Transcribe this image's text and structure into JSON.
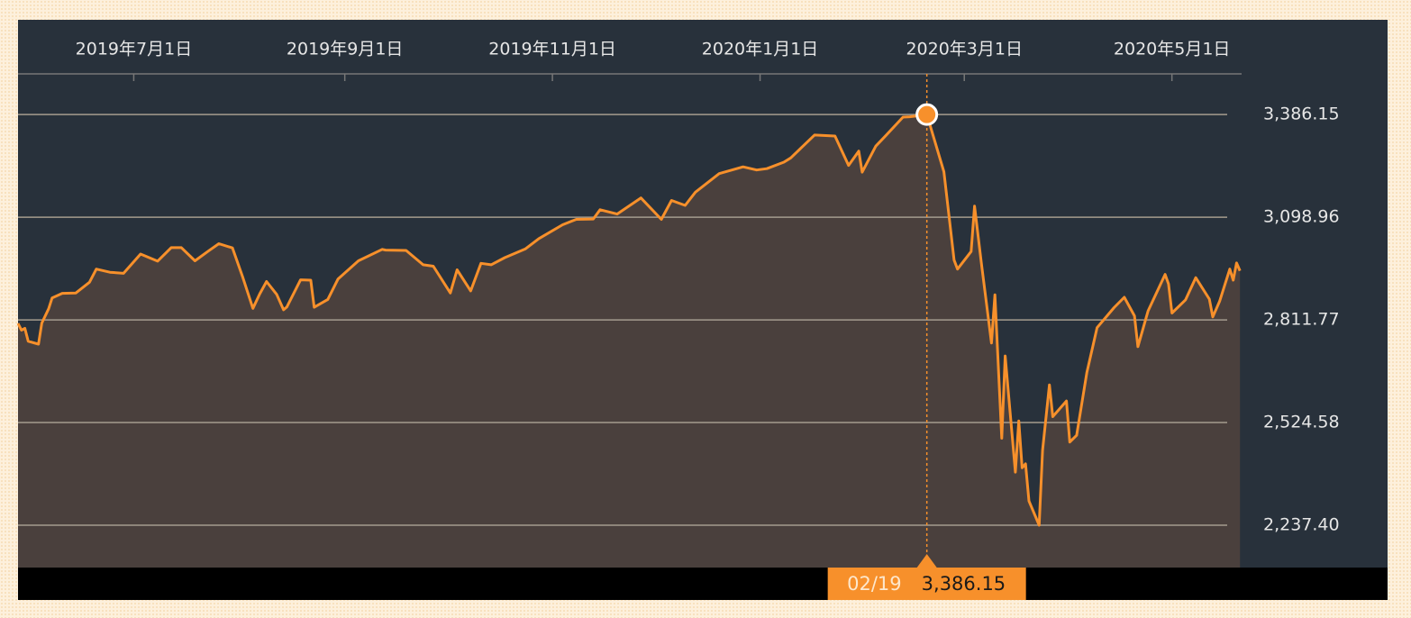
{
  "chart_data": {
    "type": "line",
    "x": [
      "2019-05-28",
      "2019-05-29",
      "2019-05-30",
      "2019-05-31",
      "2019-06-03",
      "2019-06-04",
      "2019-06-06",
      "2019-06-07",
      "2019-06-10",
      "2019-06-14",
      "2019-06-18",
      "2019-06-20",
      "2019-06-24",
      "2019-06-28",
      "2019-07-03",
      "2019-07-08",
      "2019-07-12",
      "2019-07-15",
      "2019-07-19",
      "2019-07-23",
      "2019-07-26",
      "2019-07-30",
      "2019-08-02",
      "2019-08-05",
      "2019-08-07",
      "2019-08-09",
      "2019-08-12",
      "2019-08-14",
      "2019-08-15",
      "2019-08-19",
      "2019-08-22",
      "2019-08-23",
      "2019-08-27",
      "2019-08-30",
      "2019-09-05",
      "2019-09-12",
      "2019-09-13",
      "2019-09-19",
      "2019-09-24",
      "2019-09-27",
      "2019-10-02",
      "2019-10-04",
      "2019-10-08",
      "2019-10-11",
      "2019-10-14",
      "2019-10-18",
      "2019-10-24",
      "2019-10-28",
      "2019-11-04",
      "2019-11-08",
      "2019-11-13",
      "2019-11-15",
      "2019-11-20",
      "2019-11-27",
      "2019-12-03",
      "2019-12-06",
      "2019-12-10",
      "2019-12-13",
      "2019-12-20",
      "2019-12-27",
      "2019-12-31",
      "2020-01-03",
      "2020-01-08",
      "2020-01-10",
      "2020-01-17",
      "2020-01-23",
      "2020-01-27",
      "2020-01-30",
      "2020-01-31",
      "2020-02-04",
      "2020-02-07",
      "2020-02-12",
      "2020-02-14",
      "2020-02-19",
      "2020-02-24",
      "2020-02-27",
      "2020-02-28",
      "2020-03-03",
      "2020-03-04",
      "2020-03-06",
      "2020-03-09",
      "2020-03-10",
      "2020-03-12",
      "2020-03-13",
      "2020-03-16",
      "2020-03-17",
      "2020-03-18",
      "2020-03-19",
      "2020-03-20",
      "2020-03-23",
      "2020-03-24",
      "2020-03-26",
      "2020-03-27",
      "2020-03-31",
      "2020-04-01",
      "2020-04-03",
      "2020-04-06",
      "2020-04-09",
      "2020-04-14",
      "2020-04-17",
      "2020-04-20",
      "2020-04-21",
      "2020-04-24",
      "2020-04-29",
      "2020-04-30",
      "2020-05-01",
      "2020-05-05",
      "2020-05-08",
      "2020-05-12",
      "2020-05-13",
      "2020-05-15",
      "2020-05-18",
      "2020-05-19",
      "2020-05-20",
      "2020-05-21"
    ],
    "series": [
      {
        "color": "#f7902b",
        "values": [
          2802,
          2783,
          2788,
          2752,
          2744,
          2803,
          2843,
          2873,
          2886,
          2887,
          2917,
          2954,
          2945,
          2942,
          2996,
          2976,
          3014,
          3014,
          2977,
          3005,
          3025,
          3013,
          2932,
          2844,
          2884,
          2919,
          2883,
          2840,
          2848,
          2924,
          2923,
          2847,
          2869,
          2926,
          2977,
          3009,
          3007,
          3006,
          2966,
          2962,
          2887,
          2952,
          2893,
          2970,
          2966,
          2986,
          3010,
          3039,
          3078,
          3093,
          3094,
          3120,
          3108,
          3153,
          3093,
          3146,
          3132,
          3169,
          3221,
          3240,
          3231,
          3235,
          3253,
          3265,
          3329,
          3326,
          3244,
          3284,
          3225,
          3298,
          3328,
          3379,
          3380,
          3386.15,
          3226,
          2979,
          2954,
          3003,
          3130,
          2972,
          2747,
          2882,
          2481,
          2711,
          2386,
          2529,
          2398,
          2409,
          2305,
          2237.4,
          2447,
          2630,
          2541,
          2585,
          2470,
          2489,
          2664,
          2790,
          2846,
          2875,
          2823,
          2737,
          2837,
          2939,
          2912,
          2831,
          2868,
          2930,
          2870,
          2820,
          2864,
          2954,
          2923,
          2971,
          2949
        ]
      }
    ],
    "xlim": [
      "2019-05-28",
      "2020-05-22"
    ],
    "xticks": [
      {
        "value": "2019-07-01",
        "label": "2019年7月1日"
      },
      {
        "value": "2019-09-01",
        "label": "2019年9月1日"
      },
      {
        "value": "2019-11-01",
        "label": "2019年11月1日"
      },
      {
        "value": "2020-01-01",
        "label": "2020年1月1日"
      },
      {
        "value": "2020-03-01",
        "label": "2020年3月1日"
      },
      {
        "value": "2020-05-01",
        "label": "2020年5月1日"
      }
    ],
    "ylim": [
      2119,
      3500
    ],
    "yticks": [
      {
        "value": 2237.4,
        "label": "2,237.40"
      },
      {
        "value": 2524.58,
        "label": "2,524.58"
      },
      {
        "value": 2811.77,
        "label": "2,811.77"
      },
      {
        "value": 3098.96,
        "label": "3,098.96"
      },
      {
        "value": 3386.15,
        "label": "3,386.15"
      }
    ],
    "grid": true,
    "tooltip": {
      "x": "2020-02-19",
      "x_label": "02/19",
      "value": 3386.15,
      "value_label": "3,386.15"
    }
  }
}
